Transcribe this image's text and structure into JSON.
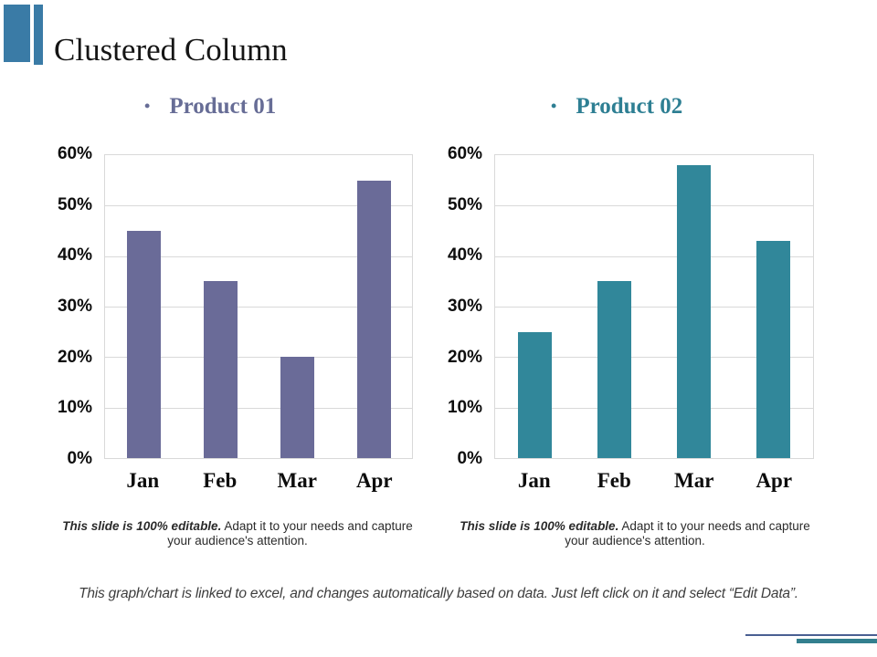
{
  "slide": {
    "title": "Clustered Column",
    "bullet": "•",
    "caption": {
      "bold": "This slide is 100% editable.",
      "rest": "Adapt it to your needs and capture your audience's attention."
    },
    "footer_note": "This graph/chart is linked to excel, and changes automatically based on data. Just left click on it and select “Edit Data”."
  },
  "colors": {
    "accent_blue": "#3a7ba6",
    "product1_bar": "#6a6b98",
    "product2_bar": "#31879a",
    "product1_heading": "#676d96",
    "product2_heading": "#2e7f93",
    "gridline": "#d9d9d9",
    "corner_line_blue": "#4a5f92",
    "corner_bar_teal": "#337f8e"
  },
  "chart_data": [
    {
      "type": "bar",
      "title": "Product 01",
      "categories": [
        "Jan",
        "Feb",
        "Mar",
        "Apr"
      ],
      "values": [
        45,
        35,
        20,
        55
      ],
      "unit": "%",
      "ylim": [
        0,
        60
      ],
      "ytick_step": 10,
      "ytick_labels": [
        "0%",
        "10%",
        "20%",
        "30%",
        "40%",
        "50%",
        "60%"
      ],
      "grid": true,
      "legend": "none",
      "bar_color": "#6a6b98"
    },
    {
      "type": "bar",
      "title": "Product 02",
      "categories": [
        "Jan",
        "Feb",
        "Mar",
        "Apr"
      ],
      "values": [
        25,
        35,
        58,
        43
      ],
      "unit": "%",
      "ylim": [
        0,
        60
      ],
      "ytick_step": 10,
      "ytick_labels": [
        "0%",
        "10%",
        "20%",
        "30%",
        "40%",
        "50%",
        "60%"
      ],
      "grid": true,
      "legend": "none",
      "bar_color": "#31879a"
    }
  ]
}
